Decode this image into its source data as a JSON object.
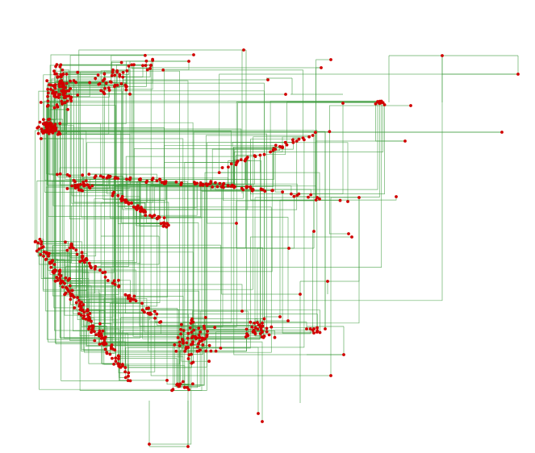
{
  "diagram": {
    "type": "orthogonal-network",
    "node_color": "#d10000",
    "edge_color": "#3a9a3a",
    "background": "#ffffff",
    "node_shape": "dot",
    "edge_style": "rectilinear"
  }
}
